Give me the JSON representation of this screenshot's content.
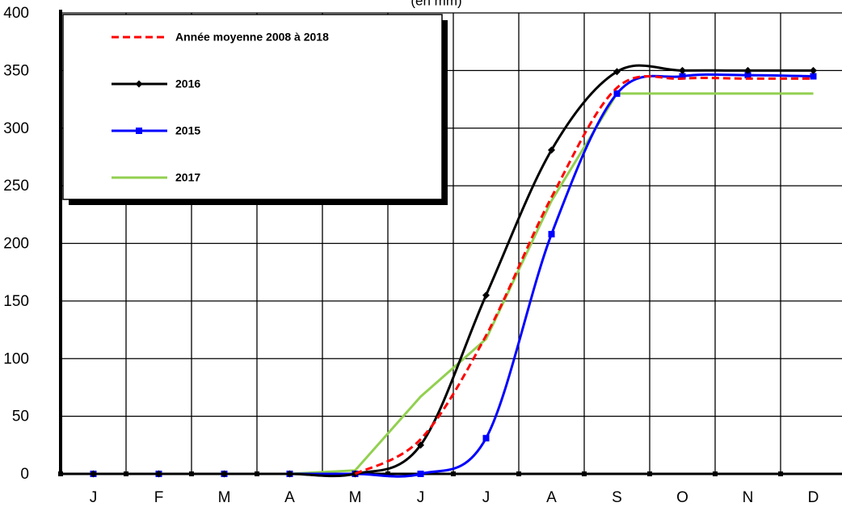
{
  "chart_data": {
    "type": "line",
    "subtitle": "(en mm)",
    "categories": [
      "J",
      "F",
      "M",
      "A",
      "M",
      "J",
      "J",
      "A",
      "S",
      "O",
      "N",
      "D"
    ],
    "series": [
      {
        "name": "Année moyenne 2008 à 2018",
        "color": "#ff0000",
        "dash": true,
        "marker": null,
        "smooth": true,
        "values": [
          null,
          null,
          null,
          null,
          0,
          30,
          120,
          240,
          335,
          343,
          343,
          343
        ]
      },
      {
        "name": "2016",
        "color": "#000000",
        "dash": false,
        "marker": "diamond",
        "smooth": true,
        "values": [
          0,
          0,
          0,
          0,
          0,
          25,
          155,
          281,
          349,
          350,
          350,
          350
        ]
      },
      {
        "name": "2015",
        "color": "#0000ff",
        "dash": false,
        "marker": "square",
        "smooth": true,
        "values": [
          0,
          0,
          0,
          0,
          0,
          0,
          31,
          208,
          330,
          345,
          346,
          345
        ]
      },
      {
        "name": "2017",
        "color": "#92d050",
        "dash": false,
        "marker": null,
        "smooth": false,
        "values": [
          0,
          0,
          0,
          0,
          3,
          67,
          117,
          237,
          330,
          330,
          330,
          330
        ]
      }
    ],
    "ylim": [
      0,
      400
    ],
    "yticks": [
      0,
      50,
      100,
      150,
      200,
      250,
      300,
      350,
      400
    ],
    "grid": true,
    "legend": "upper left"
  }
}
